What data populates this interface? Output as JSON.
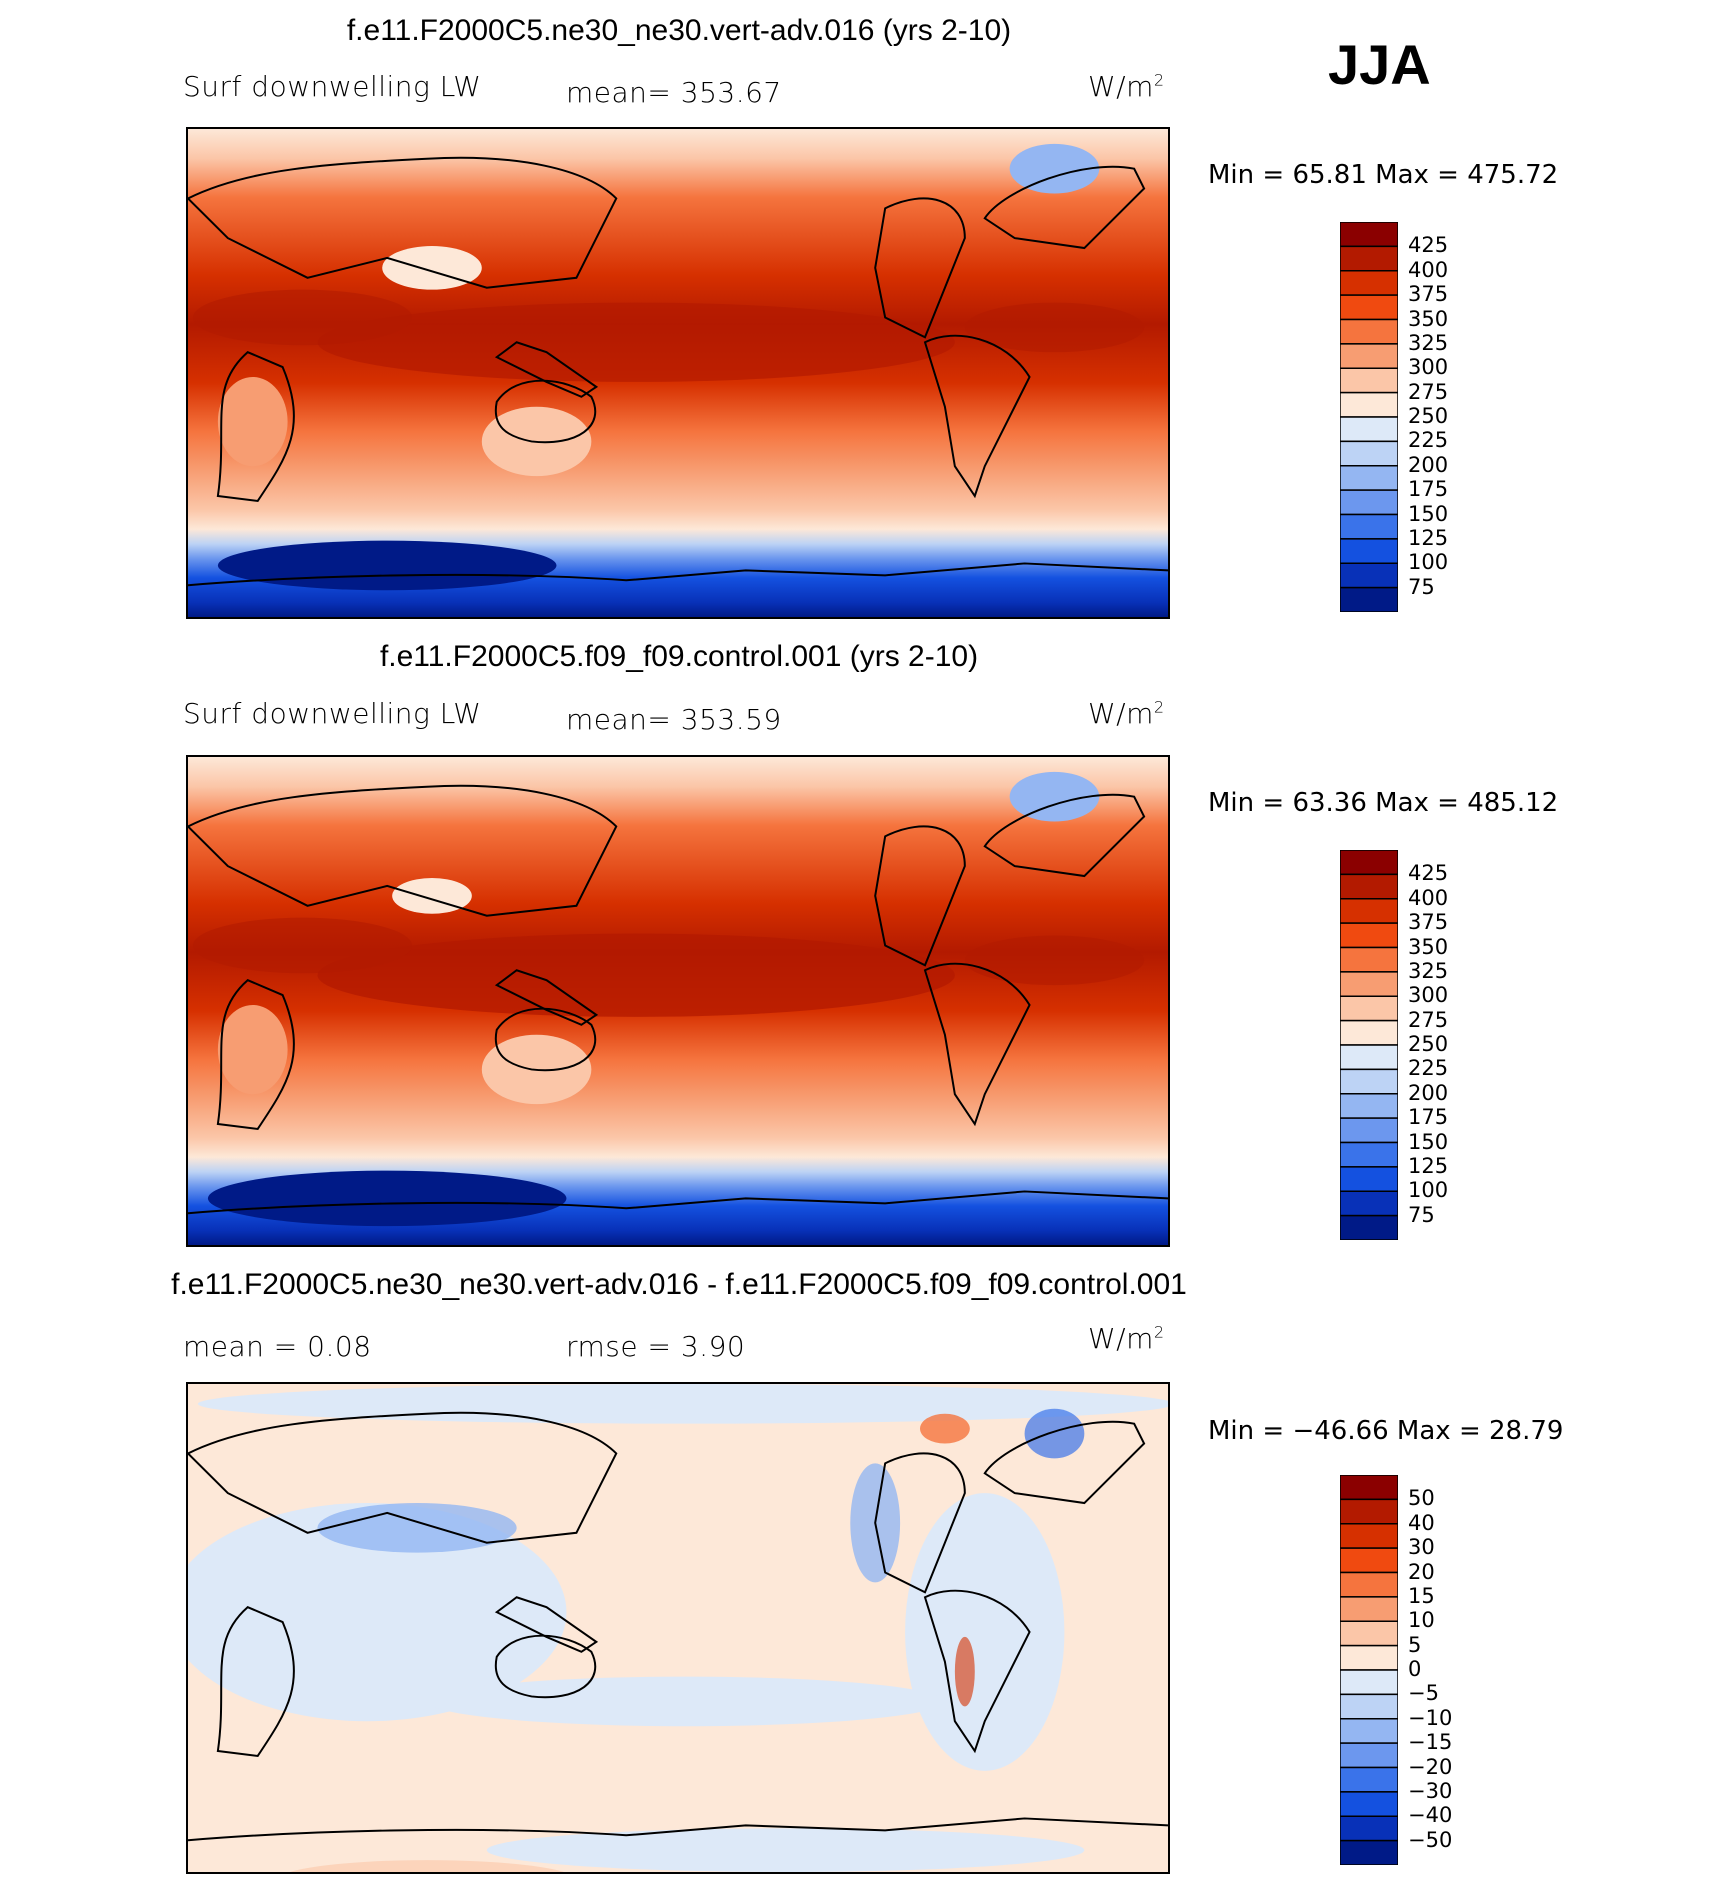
{
  "season": "JJA",
  "panels": [
    {
      "title": "f.e11.F2000C5.ne30_ne30.vert-adv.016 (yrs 2-10)",
      "left_label": "Surf downwelling LW",
      "center_label": "mean= 353.67",
      "units_base": "W/m",
      "units_exp": "2",
      "minmax": "Min =  65.81 Max = 475.72",
      "scale": "abs",
      "colorbar_labels": [
        "425",
        "400",
        "375",
        "350",
        "325",
        "300",
        "275",
        "250",
        "225",
        "200",
        "175",
        "150",
        "125",
        "100",
        "75"
      ]
    },
    {
      "title": "f.e11.F2000C5.f09_f09.control.001 (yrs 2-10)",
      "left_label": "Surf downwelling LW",
      "center_label": "mean= 353.59",
      "units_base": "W/m",
      "units_exp": "2",
      "minmax": "Min =  63.36 Max = 485.12",
      "scale": "abs",
      "colorbar_labels": [
        "425",
        "400",
        "375",
        "350",
        "325",
        "300",
        "275",
        "250",
        "225",
        "200",
        "175",
        "150",
        "125",
        "100",
        "75"
      ]
    },
    {
      "title": "f.e11.F2000C5.ne30_ne30.vert-adv.016 - f.e11.F2000C5.f09_f09.control.001",
      "left_label": "mean =    0.08",
      "center_label": "rmse =    3.90",
      "units_base": "W/m",
      "units_exp": "2",
      "minmax": "Min = −46.66 Max =  28.79",
      "scale": "diff",
      "colorbar_labels": [
        "50",
        "40",
        "30",
        "20",
        "15",
        "10",
        "5",
        "0",
        "−5",
        "−10",
        "−15",
        "−20",
        "−30",
        "−40",
        "−50"
      ]
    }
  ],
  "colors": {
    "abs": [
      "#8b0000",
      "#b31a00",
      "#d63000",
      "#f04a10",
      "#f5743e",
      "#f79d72",
      "#fbc6a8",
      "#fde8d8",
      "#dde9f8",
      "#bdd3f5",
      "#94b6f2",
      "#6c97ee",
      "#3a73ea",
      "#1451e0",
      "#0831b8",
      "#001a87"
    ],
    "diff": [
      "#8b0000",
      "#b31a00",
      "#d63000",
      "#f04a10",
      "#f5743e",
      "#f79d72",
      "#fbc6a8",
      "#fde8d8",
      "#dde9f8",
      "#bdd3f5",
      "#94b6f2",
      "#6c97ee",
      "#3a73ea",
      "#1451e0",
      "#0831b8",
      "#001a87"
    ]
  }
}
